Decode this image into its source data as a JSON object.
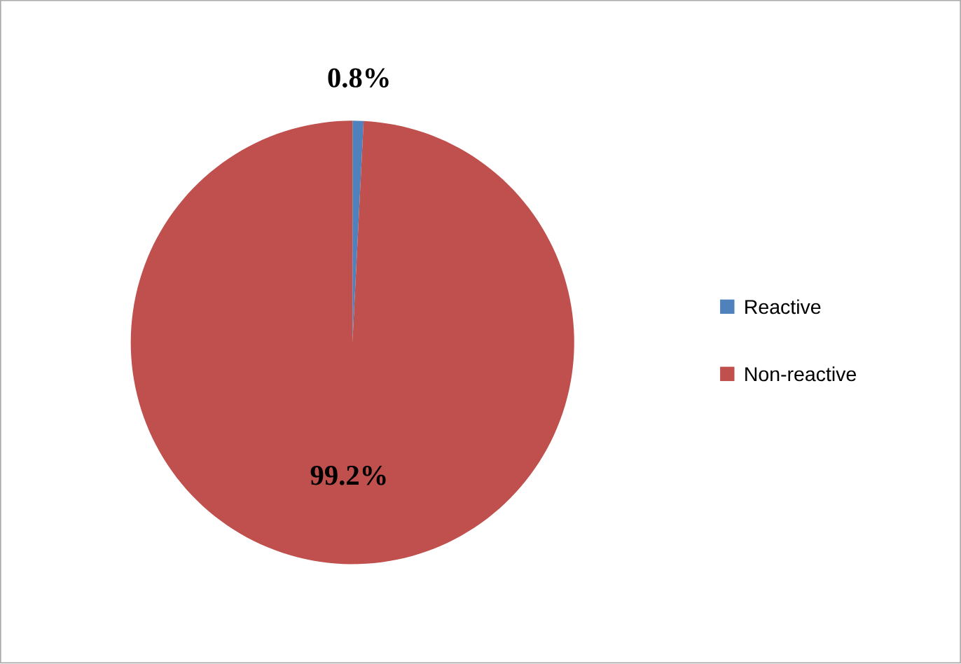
{
  "chart_data": {
    "type": "pie",
    "categories": [
      "Reactive",
      "Non-reactive"
    ],
    "values": [
      0.8,
      99.2
    ],
    "colors": [
      "#4f81bd",
      "#c0504d"
    ],
    "value_labels": [
      "0.8%",
      "99.2%"
    ],
    "legend": "right"
  }
}
